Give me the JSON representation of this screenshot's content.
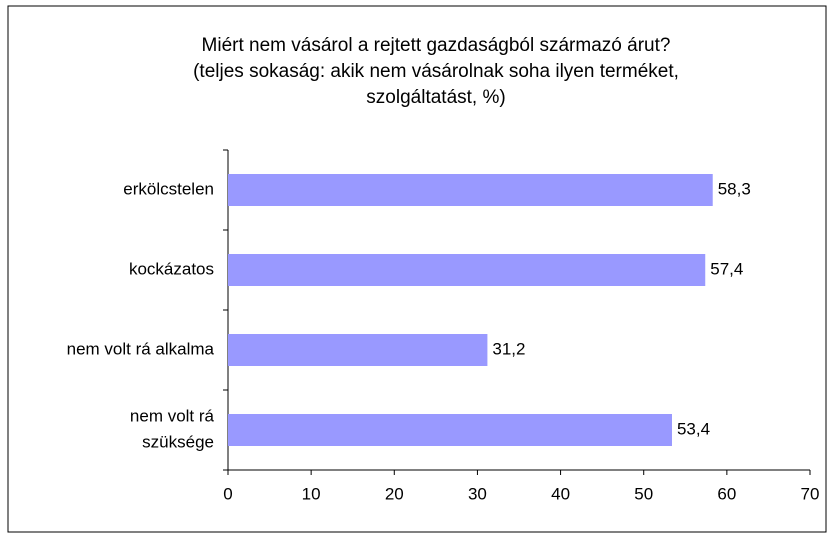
{
  "chart_data": {
    "type": "bar",
    "orientation": "horizontal",
    "title": [
      "Miért nem vásárol a rejtett gazdaságból származó árut?",
      "(teljes sokaság: akik nem vásárolnak soha ilyen terméket,",
      "szolgáltatást, %)"
    ],
    "categories": [
      [
        "erkölcstelen"
      ],
      [
        "kockázatos"
      ],
      [
        "nem volt rá alkalma"
      ],
      [
        "nem volt rá",
        "szüksége"
      ]
    ],
    "values": [
      58.3,
      57.4,
      31.2,
      53.4
    ],
    "value_labels": [
      "58,3",
      "57,4",
      "31,2",
      "53,4"
    ],
    "color": "#9999ff",
    "xlim": [
      0,
      70
    ],
    "xticks": [
      0,
      10,
      20,
      30,
      40,
      50,
      60,
      70
    ],
    "grid": false
  }
}
